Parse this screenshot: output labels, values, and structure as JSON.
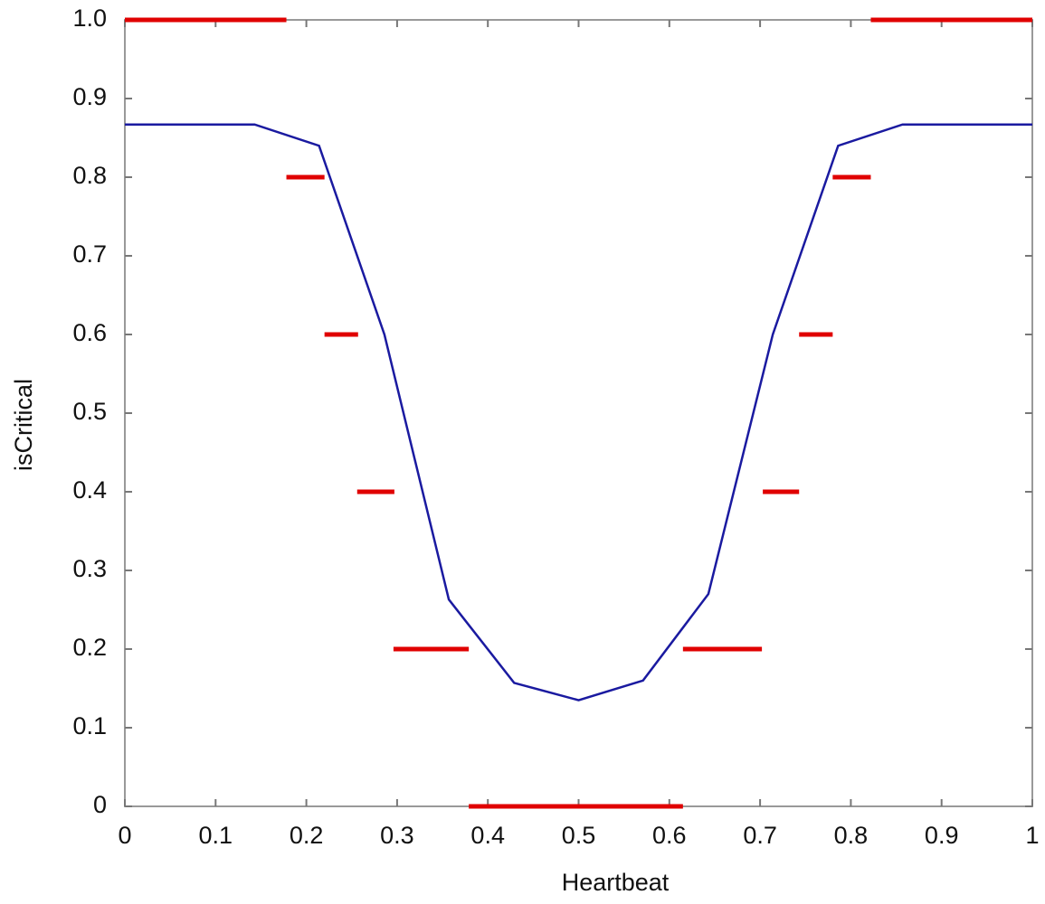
{
  "chart_data": {
    "type": "line",
    "xlabel": "Heartbeat",
    "ylabel": "isCritical",
    "xlim": [
      0,
      1
    ],
    "ylim": [
      0,
      1
    ],
    "xticks": [
      0,
      0.1,
      0.2,
      0.3,
      0.4,
      0.5,
      0.6,
      0.7,
      0.8,
      0.9,
      1
    ],
    "yticks": [
      0,
      0.1,
      0.2,
      0.3,
      0.4,
      0.5,
      0.6,
      0.7,
      0.8,
      0.9,
      {
        "value": 1,
        "label": "1.0"
      }
    ],
    "grid": false,
    "line": {
      "color": "#1a1aa0",
      "x": [
        0,
        0.143,
        0.214,
        0.286,
        0.357,
        0.429,
        0.5,
        0.571,
        0.643,
        0.714,
        0.786,
        0.857,
        1
      ],
      "y": [
        0.867,
        0.867,
        0.84,
        0.6,
        0.263,
        0.157,
        0.135,
        0.16,
        0.27,
        0.6,
        0.84,
        0.867,
        0.867
      ]
    },
    "segments_color": "#e00000",
    "segments": [
      {
        "y": 1,
        "x": [
          0,
          0.178
        ]
      },
      {
        "y": 1,
        "x": [
          0.822,
          1
        ]
      },
      {
        "y": 0.8,
        "x": [
          0.178,
          0.22
        ]
      },
      {
        "y": 0.8,
        "x": [
          0.78,
          0.822
        ]
      },
      {
        "y": 0.6,
        "x": [
          0.22,
          0.257
        ]
      },
      {
        "y": 0.6,
        "x": [
          0.743,
          0.78
        ]
      },
      {
        "y": 0.4,
        "x": [
          0.256,
          0.297
        ]
      },
      {
        "y": 0.4,
        "x": [
          0.703,
          0.743
        ]
      },
      {
        "y": 0.2,
        "x": [
          0.296,
          0.379
        ]
      },
      {
        "y": 0.2,
        "x": [
          0.615,
          0.702
        ]
      },
      {
        "y": 0,
        "x": [
          0.379,
          0.615
        ]
      }
    ]
  }
}
